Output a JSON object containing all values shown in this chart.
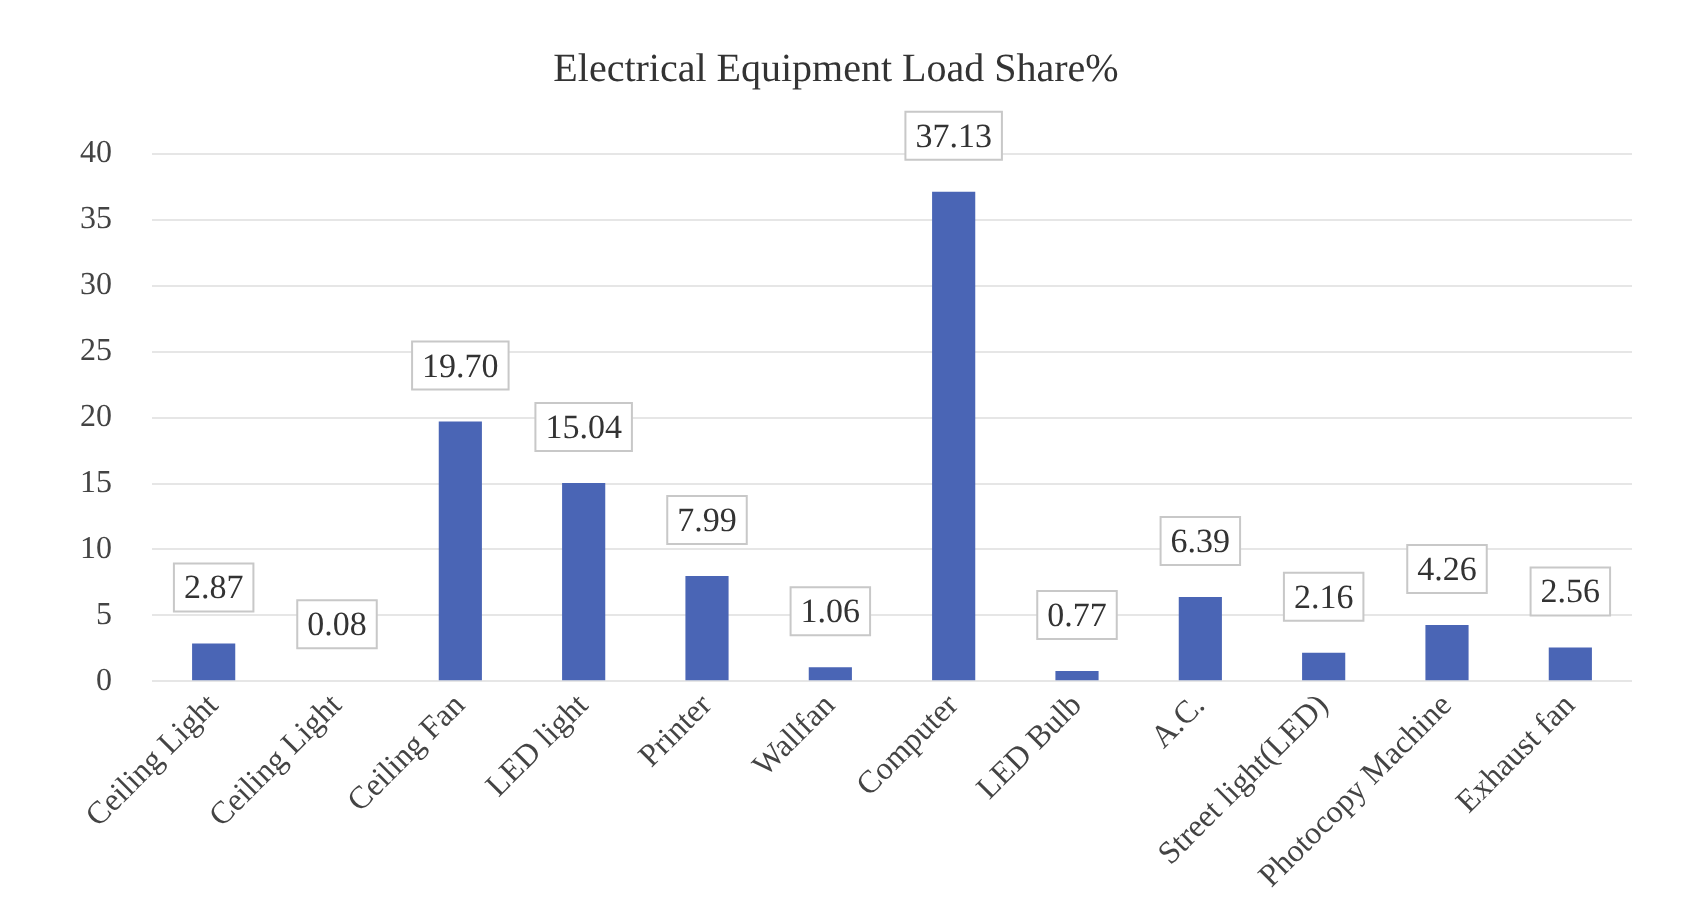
{
  "chart_data": {
    "type": "bar",
    "title": "Electrical Equipment Load Share%",
    "categories": [
      "Ceiling Light",
      "Ceiling Light",
      "Ceiling Fan",
      "LED light",
      "Printer",
      "Wallfan",
      "Computer",
      "LED Bulb",
      "A.C.",
      "Street light(LED)",
      "Photocopy Machine",
      "Exhaust fan"
    ],
    "values": [
      2.87,
      0.08,
      19.7,
      15.04,
      7.99,
      1.06,
      37.13,
      0.77,
      6.39,
      2.16,
      4.26,
      2.56
    ],
    "value_labels": [
      "2.87",
      "0.08",
      "19.70",
      "15.04",
      "7.99",
      "1.06",
      "37.13",
      "0.77",
      "6.39",
      "2.16",
      "4.26",
      "2.56"
    ],
    "color": "#4a65b5",
    "ylim": [
      0,
      40
    ],
    "yticks": [
      0,
      5,
      10,
      15,
      20,
      25,
      30,
      35,
      40
    ],
    "grid": "y",
    "legend": false
  }
}
